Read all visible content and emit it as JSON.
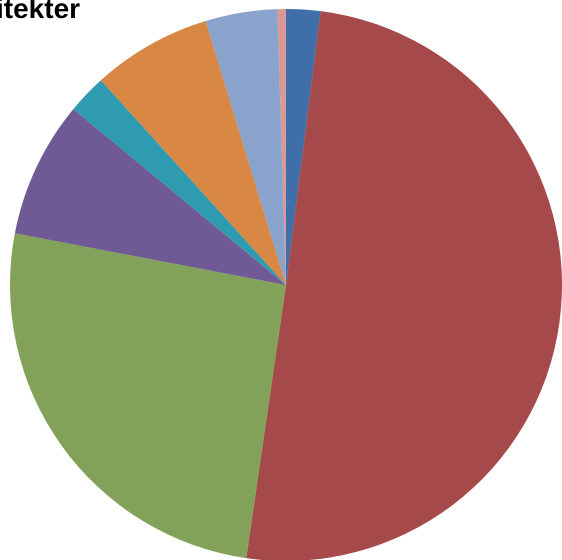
{
  "chart_data": {
    "type": "pie",
    "title": "itekter",
    "start": "12 o'clock",
    "direction": "clockwise",
    "slices": [
      {
        "value": 2.0,
        "color": "#3f6ea8"
      },
      {
        "value": 50.3,
        "color": "#a5494a"
      },
      {
        "value": 25.7,
        "color": "#82a259"
      },
      {
        "value": 8.0,
        "color": "#6f5a95"
      },
      {
        "value": 2.3,
        "color": "#2f9bb0"
      },
      {
        "value": 7.0,
        "color": "#d88744"
      },
      {
        "value": 4.2,
        "color": "#89a3cd"
      },
      {
        "value": 0.5,
        "color": "#d99a97"
      }
    ]
  }
}
